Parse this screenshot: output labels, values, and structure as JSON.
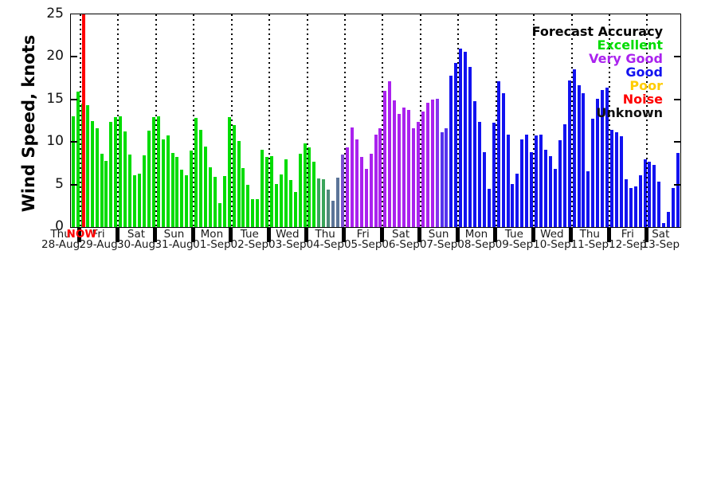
{
  "figure": {
    "ylabel": "Wind Speed, knots",
    "now_marker": {
      "label": "NOW",
      "color": "#ff0000"
    },
    "legend": {
      "title": "Forecast Accuracy",
      "title_color": "#000000",
      "entries": [
        {
          "label": "Excellent",
          "color": "#00dc00"
        },
        {
          "label": "Very Good",
          "color": "#aa22ee"
        },
        {
          "label": "Good",
          "color": "#1212f0"
        },
        {
          "label": "Poor",
          "color": "#ffcc00"
        },
        {
          "label": "Noise",
          "color": "#ff0000"
        },
        {
          "label": "Unknown",
          "color": "#111111"
        }
      ]
    }
  },
  "chart_data": {
    "type": "bar",
    "title": "",
    "xlabel": "",
    "ylabel": "Wind Speed, knots",
    "ylim": [
      0,
      25
    ],
    "yticks": [
      0,
      5,
      10,
      15,
      20,
      25
    ],
    "grid": "vertical dotted lines at day boundaries",
    "legend_position": "top-right",
    "bar_interval_hours": 3,
    "accuracy_palette": {
      "g": "#00dc00",
      "sg": "#3aa55a",
      "tg": "#4f8a7a",
      "sl": "#5c7599",
      "dp": "#7a4fd0",
      "p": "#aa22ee",
      "v": "#8833ee",
      "bv": "#5533ee",
      "b": "#1212f0"
    },
    "now_line": {
      "label": "NOW",
      "color": "#ff0000",
      "after_bar_index": 2
    },
    "days": [
      {
        "day": "Thu",
        "date": "28-Aug",
        "color": "g",
        "values": [
          13.0,
          15.9
        ]
      },
      {
        "day": "Fri",
        "date": "29-Aug",
        "color": "g",
        "values": [
          14.5,
          14.3,
          12.5,
          11.6,
          8.6,
          7.8,
          12.4,
          12.9
        ]
      },
      {
        "day": "Sat",
        "date": "30-Aug",
        "color": "g",
        "values": [
          13.0,
          11.2,
          8.5,
          6.1,
          6.3,
          8.4,
          11.3,
          12.9
        ]
      },
      {
        "day": "Sun",
        "date": "31-Aug",
        "color": "g",
        "values": [
          13.0,
          10.3,
          10.8,
          8.7,
          8.2,
          6.7,
          6.1,
          9.0
        ]
      },
      {
        "day": "Mon",
        "date": "01-Sep",
        "color": "g",
        "values": [
          12.8,
          11.4,
          9.5,
          7.0,
          5.9,
          2.8,
          6.0,
          12.9
        ]
      },
      {
        "day": "Tue",
        "date": "02-Sep",
        "color": "g",
        "values": [
          12.0,
          10.1,
          6.9,
          5.0,
          3.3,
          3.3,
          9.1,
          8.2
        ]
      },
      {
        "day": "Wed",
        "date": "03-Sep",
        "color": "g",
        "values": [
          8.3,
          5.1,
          6.2,
          8.0,
          5.5,
          4.1,
          8.6,
          9.8
        ]
      },
      {
        "day": "Thu",
        "date": "04-Sep",
        "colors": [
          "g",
          "g",
          "sg",
          "sg",
          "tg",
          "sl",
          "sl",
          "dp"
        ],
        "values": [
          9.4,
          7.7,
          5.7,
          5.6,
          4.4,
          3.1,
          5.8,
          8.5
        ]
      },
      {
        "day": "Fri",
        "date": "05-Sep",
        "color": "p",
        "values": [
          9.4,
          11.7,
          10.3,
          8.2,
          6.8,
          8.6,
          10.9,
          11.6
        ]
      },
      {
        "day": "Sat",
        "date": "06-Sep",
        "color": "p",
        "values": [
          16.0,
          17.1,
          14.9,
          13.3,
          14.0,
          13.8,
          11.6,
          12.4
        ]
      },
      {
        "day": "Sun",
        "date": "07-Sep",
        "colors": [
          "p",
          "p",
          "p",
          "v",
          "bv",
          "bv",
          "b",
          "b"
        ],
        "values": [
          13.6,
          14.6,
          15.0,
          15.1,
          11.1,
          11.6,
          17.8,
          19.3
        ]
      },
      {
        "day": "Mon",
        "date": "08-Sep",
        "color": "b",
        "values": [
          21.0,
          20.6,
          18.8,
          14.8,
          12.4,
          8.8,
          4.5,
          12.3
        ]
      },
      {
        "day": "Tue",
        "date": "09-Sep",
        "color": "b",
        "values": [
          17.1,
          15.7,
          10.9,
          5.1,
          6.3,
          10.3,
          10.9,
          8.8
        ]
      },
      {
        "day": "Wed",
        "date": "10-Sep",
        "color": "b",
        "values": [
          10.8,
          10.9,
          9.1,
          8.3,
          6.8,
          10.2,
          12.1,
          17.2
        ]
      },
      {
        "day": "Thu",
        "date": "11-Sep",
        "color": "b",
        "values": [
          18.5,
          16.7,
          15.7,
          6.6,
          12.7,
          15.1,
          16.1,
          16.4
        ]
      },
      {
        "day": "Fri",
        "date": "12-Sep",
        "color": "b",
        "values": [
          11.4,
          11.1,
          10.7,
          5.6,
          4.6,
          4.8,
          6.1,
          8.0
        ]
      },
      {
        "day": "Sat",
        "date": "13-Sep",
        "color": "b",
        "values": [
          7.7,
          7.3,
          5.3,
          0.5,
          1.8,
          4.6,
          8.7
        ]
      }
    ]
  }
}
